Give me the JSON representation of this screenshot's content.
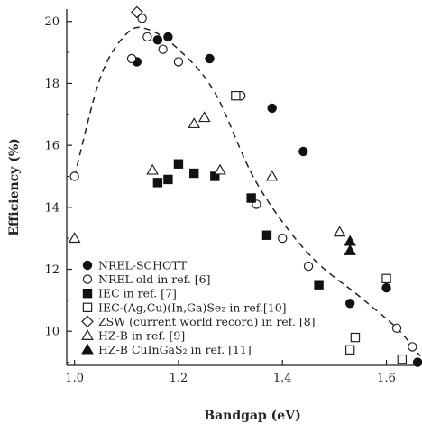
{
  "chart_data": {
    "type": "scatter",
    "xlabel": "Bandgap (eV)",
    "ylabel": "Efficiency (%)",
    "xlim": [
      0.985,
      1.665
    ],
    "ylim": [
      8.9,
      20.4
    ],
    "x_ticks": [
      1.0,
      1.2,
      1.4,
      1.6
    ],
    "y_ticks": [
      10,
      12,
      14,
      16,
      18,
      20
    ],
    "grid": false,
    "legend_position": "lower-left",
    "series": [
      {
        "name": "NREL-SCHOTT",
        "marker": "filled-circle",
        "color": "#111111",
        "points": [
          [
            1.12,
            18.7
          ],
          [
            1.16,
            19.4
          ],
          [
            1.18,
            19.5
          ],
          [
            1.26,
            18.8
          ],
          [
            1.32,
            17.6
          ],
          [
            1.38,
            17.2
          ],
          [
            1.44,
            15.8
          ],
          [
            1.53,
            10.9
          ],
          [
            1.6,
            11.4
          ],
          [
            1.66,
            9.0
          ]
        ]
      },
      {
        "name": "NREL old in ref. [6]",
        "marker": "open-circle",
        "color": "#222222",
        "points": [
          [
            1.0,
            15.0
          ],
          [
            1.11,
            18.8
          ],
          [
            1.13,
            20.1
          ],
          [
            1.14,
            19.5
          ],
          [
            1.17,
            19.1
          ],
          [
            1.2,
            18.7
          ],
          [
            1.32,
            17.6
          ],
          [
            1.35,
            14.1
          ],
          [
            1.4,
            13.0
          ],
          [
            1.45,
            12.1
          ],
          [
            1.62,
            10.1
          ],
          [
            1.65,
            9.5
          ]
        ]
      },
      {
        "name": "IEC in ref. [7]",
        "marker": "filled-square",
        "color": "#111111",
        "points": [
          [
            1.16,
            14.8
          ],
          [
            1.18,
            14.9
          ],
          [
            1.2,
            15.4
          ],
          [
            1.23,
            15.1
          ],
          [
            1.27,
            15.0
          ],
          [
            1.34,
            14.3
          ],
          [
            1.37,
            13.1
          ],
          [
            1.47,
            11.5
          ]
        ]
      },
      {
        "name": "IEC-(Ag,Cu)(In,Ga)Se₂ in ref.[10]",
        "marker": "open-square",
        "color": "#222222",
        "points": [
          [
            1.31,
            17.6
          ],
          [
            1.53,
            9.4
          ],
          [
            1.54,
            9.8
          ],
          [
            1.6,
            11.7
          ],
          [
            1.63,
            9.1
          ]
        ]
      },
      {
        "name": "ZSW (current world record) in ref. [8]",
        "marker": "open-diamond",
        "color": "#222222",
        "points": [
          [
            1.12,
            20.3
          ]
        ]
      },
      {
        "name": "HZ-B in ref. [9]",
        "marker": "open-triangle",
        "color": "#222222",
        "points": [
          [
            1.0,
            13.0
          ],
          [
            1.15,
            15.2
          ],
          [
            1.23,
            16.7
          ],
          [
            1.25,
            16.9
          ],
          [
            1.28,
            15.2
          ],
          [
            1.38,
            15.0
          ],
          [
            1.51,
            13.2
          ]
        ]
      },
      {
        "name": "HZ-B CuInGaS₂ in ref. [11]",
        "marker": "filled-triangle",
        "color": "#111111",
        "points": [
          [
            1.53,
            12.6
          ],
          [
            1.53,
            12.9
          ]
        ]
      }
    ],
    "trend_line": {
      "style": "dashed",
      "points": [
        [
          1.0,
          15.0
        ],
        [
          1.05,
          18.2
        ],
        [
          1.1,
          19.6
        ],
        [
          1.14,
          19.75
        ],
        [
          1.2,
          19.1
        ],
        [
          1.27,
          17.7
        ],
        [
          1.35,
          14.8
        ],
        [
          1.45,
          12.5
        ],
        [
          1.55,
          11.1
        ],
        [
          1.62,
          10.1
        ],
        [
          1.665,
          9.2
        ]
      ]
    }
  }
}
